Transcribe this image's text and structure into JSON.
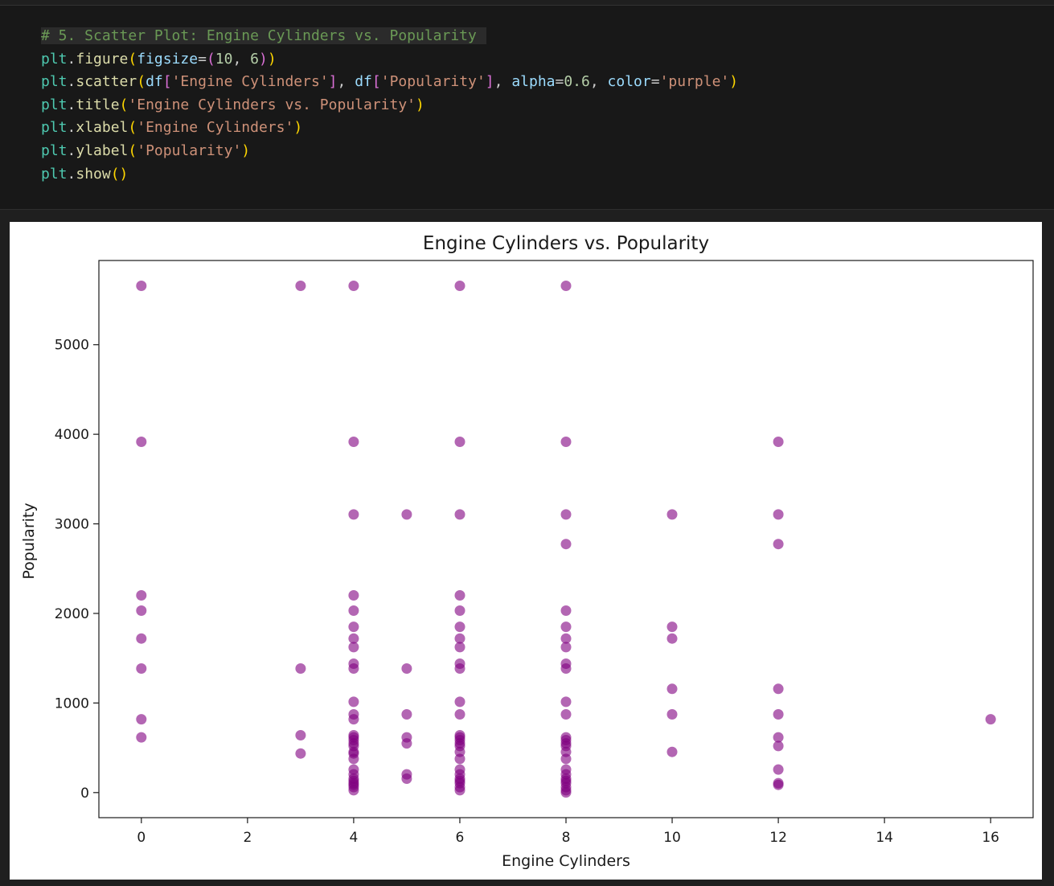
{
  "code_cell": {
    "lines": [
      [
        {
          "t": "# 5. Scatter Plot: Engine Cylinders vs. Popularity",
          "c": "c-comment"
        }
      ],
      [
        {
          "t": "plt",
          "c": "c-var"
        },
        {
          "t": ".",
          "c": "c-punc"
        },
        {
          "t": "figure",
          "c": "c-fn"
        },
        {
          "t": "(",
          "c": "c-br1"
        },
        {
          "t": "figsize",
          "c": "c-param"
        },
        {
          "t": "=",
          "c": "c-punc"
        },
        {
          "t": "(",
          "c": "c-br2"
        },
        {
          "t": "10",
          "c": "c-num"
        },
        {
          "t": ", ",
          "c": "c-punc"
        },
        {
          "t": "6",
          "c": "c-num"
        },
        {
          "t": ")",
          "c": "c-br2"
        },
        {
          "t": ")",
          "c": "c-br1"
        }
      ],
      [
        {
          "t": "plt",
          "c": "c-var"
        },
        {
          "t": ".",
          "c": "c-punc"
        },
        {
          "t": "scatter",
          "c": "c-fn"
        },
        {
          "t": "(",
          "c": "c-br1"
        },
        {
          "t": "df",
          "c": "c-param"
        },
        {
          "t": "[",
          "c": "c-br2"
        },
        {
          "t": "'Engine Cylinders'",
          "c": "c-str"
        },
        {
          "t": "]",
          "c": "c-br2"
        },
        {
          "t": ", ",
          "c": "c-punc"
        },
        {
          "t": "df",
          "c": "c-param"
        },
        {
          "t": "[",
          "c": "c-br2"
        },
        {
          "t": "'Popularity'",
          "c": "c-str"
        },
        {
          "t": "]",
          "c": "c-br2"
        },
        {
          "t": ", ",
          "c": "c-punc"
        },
        {
          "t": "alpha",
          "c": "c-param"
        },
        {
          "t": "=",
          "c": "c-punc"
        },
        {
          "t": "0.6",
          "c": "c-num"
        },
        {
          "t": ", ",
          "c": "c-punc"
        },
        {
          "t": "color",
          "c": "c-param"
        },
        {
          "t": "=",
          "c": "c-punc"
        },
        {
          "t": "'purple'",
          "c": "c-str"
        },
        {
          "t": ")",
          "c": "c-br1"
        }
      ],
      [
        {
          "t": "plt",
          "c": "c-var"
        },
        {
          "t": ".",
          "c": "c-punc"
        },
        {
          "t": "title",
          "c": "c-fn"
        },
        {
          "t": "(",
          "c": "c-br1"
        },
        {
          "t": "'Engine Cylinders vs. Popularity'",
          "c": "c-str"
        },
        {
          "t": ")",
          "c": "c-br1"
        }
      ],
      [
        {
          "t": "plt",
          "c": "c-var"
        },
        {
          "t": ".",
          "c": "c-punc"
        },
        {
          "t": "xlabel",
          "c": "c-fn"
        },
        {
          "t": "(",
          "c": "c-br1"
        },
        {
          "t": "'Engine Cylinders'",
          "c": "c-str"
        },
        {
          "t": ")",
          "c": "c-br1"
        }
      ],
      [
        {
          "t": "plt",
          "c": "c-var"
        },
        {
          "t": ".",
          "c": "c-punc"
        },
        {
          "t": "ylabel",
          "c": "c-fn"
        },
        {
          "t": "(",
          "c": "c-br1"
        },
        {
          "t": "'Popularity'",
          "c": "c-str"
        },
        {
          "t": ")",
          "c": "c-br1"
        }
      ],
      [
        {
          "t": "plt",
          "c": "c-var"
        },
        {
          "t": ".",
          "c": "c-punc"
        },
        {
          "t": "show",
          "c": "c-fn"
        },
        {
          "t": "()",
          "c": "c-br1"
        }
      ]
    ]
  },
  "chart_data": {
    "type": "scatter",
    "title": "Engine Cylinders vs. Popularity",
    "xlabel": "Engine Cylinders",
    "ylabel": "Popularity",
    "xlim": [
      -0.8,
      16.8
    ],
    "ylim": [
      -280,
      5940
    ],
    "xticks": [
      0,
      2,
      4,
      6,
      8,
      10,
      12,
      14,
      16
    ],
    "yticks": [
      0,
      1000,
      2000,
      3000,
      4000,
      5000
    ],
    "marker_color": "#800080",
    "alpha": 0.6,
    "grid": false,
    "series": [
      {
        "points": [
          [
            0,
            5657
          ],
          [
            0,
            3916
          ],
          [
            0,
            2202
          ],
          [
            0,
            2031
          ],
          [
            0,
            1720
          ],
          [
            0,
            1385
          ],
          [
            0,
            819
          ],
          [
            0,
            617
          ],
          [
            3,
            5657
          ],
          [
            3,
            1385
          ],
          [
            3,
            640
          ],
          [
            3,
            436
          ],
          [
            4,
            5657
          ],
          [
            4,
            3916
          ],
          [
            4,
            3105
          ],
          [
            4,
            2202
          ],
          [
            4,
            2031
          ],
          [
            4,
            1851
          ],
          [
            4,
            1720
          ],
          [
            4,
            1624
          ],
          [
            4,
            1439
          ],
          [
            4,
            1385
          ],
          [
            4,
            1013
          ],
          [
            4,
            873
          ],
          [
            4,
            819
          ],
          [
            4,
            640
          ],
          [
            4,
            617
          ],
          [
            4,
            586
          ],
          [
            4,
            549
          ],
          [
            4,
            520
          ],
          [
            4,
            454
          ],
          [
            4,
            436
          ],
          [
            4,
            376
          ],
          [
            4,
            258
          ],
          [
            4,
            204
          ],
          [
            4,
            155
          ],
          [
            4,
            130
          ],
          [
            4,
            105
          ],
          [
            4,
            86
          ],
          [
            4,
            61
          ],
          [
            4,
            26
          ],
          [
            5,
            3105
          ],
          [
            5,
            1385
          ],
          [
            5,
            873
          ],
          [
            5,
            617
          ],
          [
            5,
            549
          ],
          [
            5,
            204
          ],
          [
            5,
            155
          ],
          [
            6,
            5657
          ],
          [
            6,
            3916
          ],
          [
            6,
            3105
          ],
          [
            6,
            2202
          ],
          [
            6,
            2031
          ],
          [
            6,
            1851
          ],
          [
            6,
            1720
          ],
          [
            6,
            1624
          ],
          [
            6,
            1439
          ],
          [
            6,
            1385
          ],
          [
            6,
            1013
          ],
          [
            6,
            873
          ],
          [
            6,
            640
          ],
          [
            6,
            617
          ],
          [
            6,
            586
          ],
          [
            6,
            549
          ],
          [
            6,
            520
          ],
          [
            6,
            454
          ],
          [
            6,
            376
          ],
          [
            6,
            258
          ],
          [
            6,
            204
          ],
          [
            6,
            155
          ],
          [
            6,
            130
          ],
          [
            6,
            105
          ],
          [
            6,
            61
          ],
          [
            6,
            26
          ],
          [
            8,
            5657
          ],
          [
            8,
            3916
          ],
          [
            8,
            3105
          ],
          [
            8,
            2774
          ],
          [
            8,
            2031
          ],
          [
            8,
            1851
          ],
          [
            8,
            1720
          ],
          [
            8,
            1624
          ],
          [
            8,
            1439
          ],
          [
            8,
            1385
          ],
          [
            8,
            1013
          ],
          [
            8,
            873
          ],
          [
            8,
            617
          ],
          [
            8,
            586
          ],
          [
            8,
            549
          ],
          [
            8,
            520
          ],
          [
            8,
            454
          ],
          [
            8,
            376
          ],
          [
            8,
            258
          ],
          [
            8,
            204
          ],
          [
            8,
            155
          ],
          [
            8,
            130
          ],
          [
            8,
            105
          ],
          [
            8,
            61
          ],
          [
            8,
            26
          ],
          [
            8,
            2
          ],
          [
            10,
            3105
          ],
          [
            10,
            1851
          ],
          [
            10,
            1720
          ],
          [
            10,
            1158
          ],
          [
            10,
            873
          ],
          [
            10,
            454
          ],
          [
            12,
            3916
          ],
          [
            12,
            3105
          ],
          [
            12,
            2774
          ],
          [
            12,
            1158
          ],
          [
            12,
            873
          ],
          [
            12,
            617
          ],
          [
            12,
            520
          ],
          [
            12,
            258
          ],
          [
            12,
            105
          ],
          [
            12,
            86
          ],
          [
            16,
            819
          ]
        ]
      }
    ]
  }
}
